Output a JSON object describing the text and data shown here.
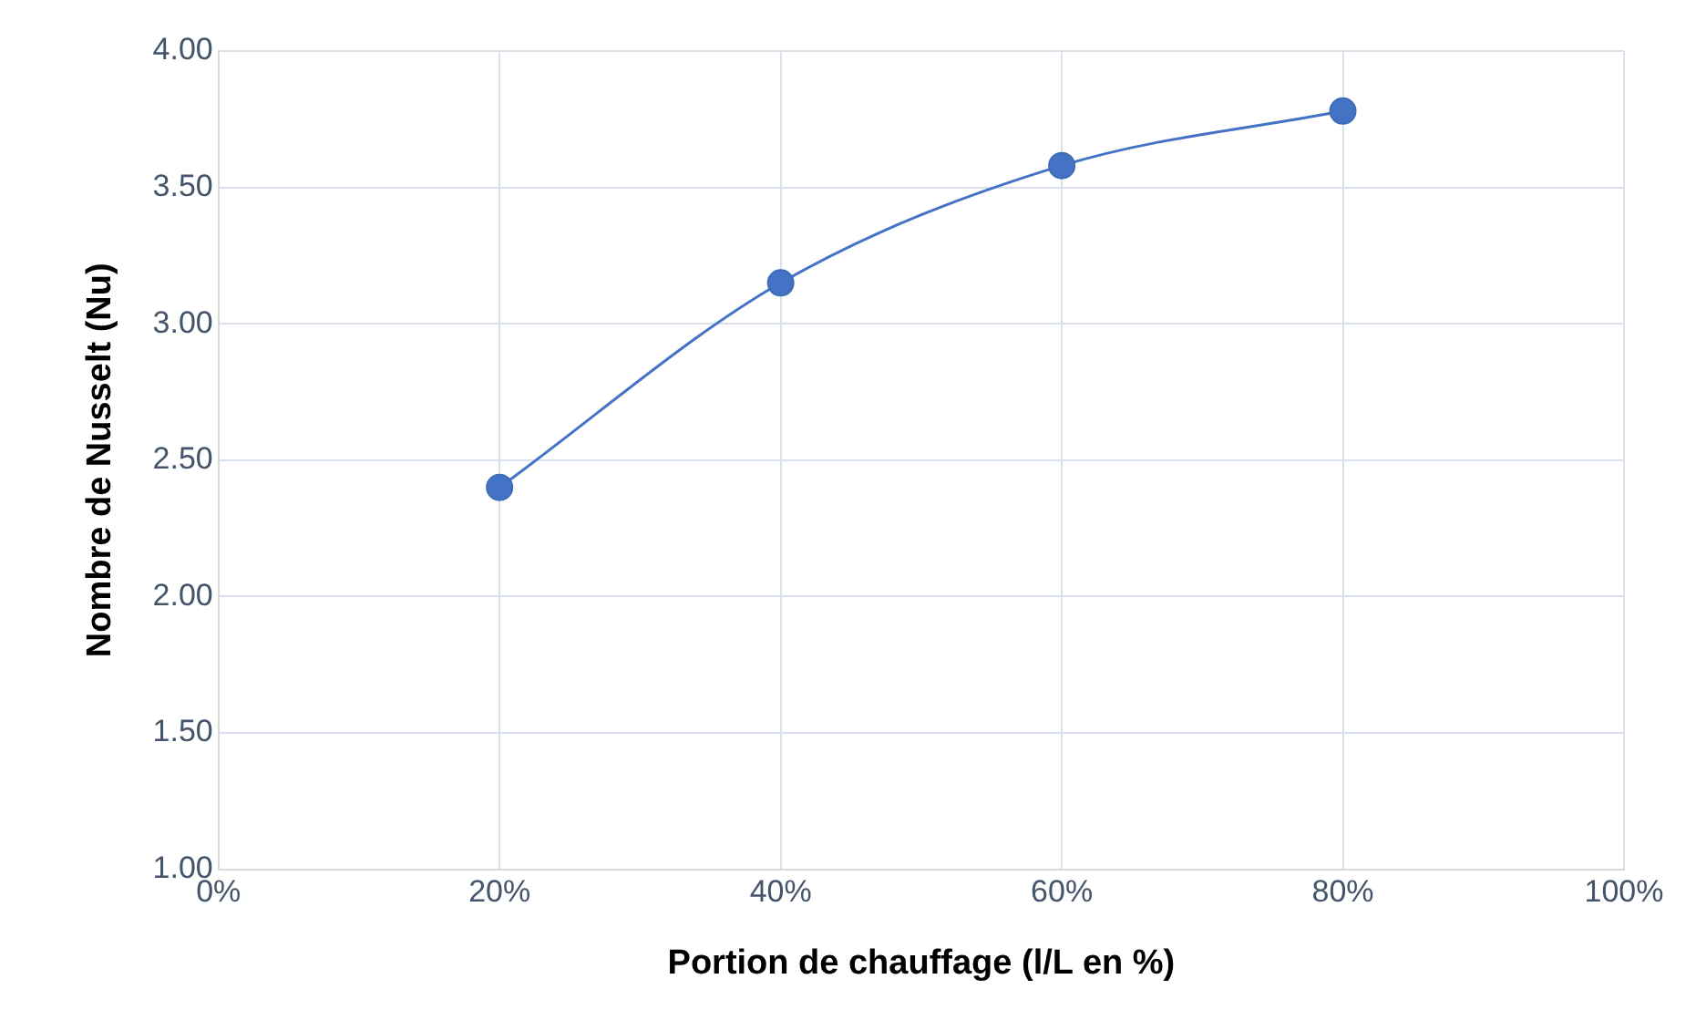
{
  "chart_data": {
    "type": "line",
    "xlabel": "Portion de chauffage (l/L en %)",
    "ylabel": "Nombre de Nusselt (Nu)",
    "x": [
      20,
      40,
      60,
      80
    ],
    "series": [
      {
        "color": "#4472c4",
        "values": [
          2.4,
          3.15,
          3.58,
          3.78
        ]
      }
    ],
    "xlim": [
      0,
      100
    ],
    "xticks": [
      {
        "value": 0,
        "label": "0%"
      },
      {
        "value": 20,
        "label": "20%"
      },
      {
        "value": 40,
        "label": "40%"
      },
      {
        "value": 60,
        "label": "60%"
      },
      {
        "value": 80,
        "label": "80%"
      },
      {
        "value": 100,
        "label": "100%"
      }
    ],
    "ylim": [
      1,
      4
    ],
    "yticks": [
      {
        "value": 1,
        "label": "1.00"
      },
      {
        "value": 1.5,
        "label": "1.50"
      },
      {
        "value": 2,
        "label": "2.00"
      },
      {
        "value": 2.5,
        "label": "2.50"
      },
      {
        "value": 3,
        "label": "3.00"
      },
      {
        "value": 3.5,
        "label": "3.50"
      },
      {
        "value": 4,
        "label": "4.00"
      }
    ],
    "grid": true,
    "marker": "circle",
    "line_style": "solid",
    "legend": false
  }
}
